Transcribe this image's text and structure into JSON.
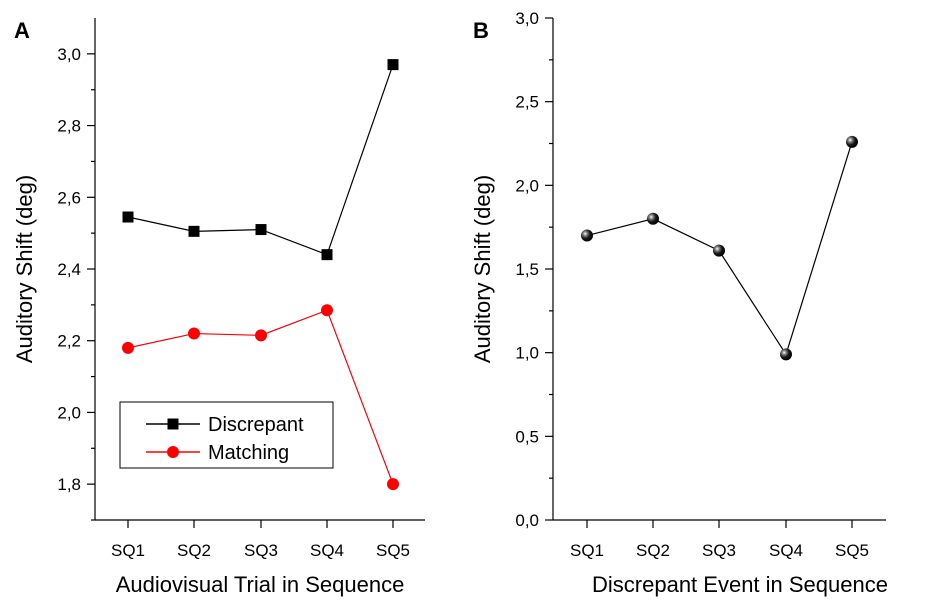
{
  "chart_data": [
    {
      "panel": "A",
      "type": "line",
      "xlabel": "Audiovisual Trial in Sequence",
      "ylabel": "Auditory Shift (deg)",
      "categories": [
        "SQ1",
        "SQ2",
        "SQ3",
        "SQ4",
        "SQ5"
      ],
      "ylim": [
        1.7,
        3.1
      ],
      "yticks": [
        "1,8",
        "2,0",
        "2,2",
        "2,4",
        "2,6",
        "2,8",
        "3,0"
      ],
      "yticks_values": [
        1.8,
        2.0,
        2.2,
        2.4,
        2.6,
        2.8,
        3.0
      ],
      "legend_position": "bottom-left",
      "series": [
        {
          "name": "Discrepant",
          "color": "#000000",
          "marker": "square",
          "values": [
            2.545,
            2.505,
            2.51,
            2.44,
            2.97
          ]
        },
        {
          "name": "Matching",
          "color": "#ff0000",
          "marker": "circle",
          "values": [
            2.18,
            2.22,
            2.215,
            2.285,
            1.8
          ]
        }
      ]
    },
    {
      "panel": "B",
      "type": "line",
      "xlabel": "Discrepant Event in Sequence",
      "ylabel": "Auditory Shift (deg)",
      "categories": [
        "SQ1",
        "SQ2",
        "SQ3",
        "SQ4",
        "SQ5"
      ],
      "ylim": [
        0,
        3.0
      ],
      "yticks": [
        "0,0",
        "0,5",
        "1,0",
        "1,5",
        "2,0",
        "2,5",
        "3,0"
      ],
      "yticks_values": [
        0,
        0.5,
        1.0,
        1.5,
        2.0,
        2.5,
        3.0
      ],
      "series": [
        {
          "color": "#000000",
          "marker": "sphere",
          "values": [
            1.7,
            1.8,
            1.61,
            0.99,
            2.26
          ]
        }
      ]
    }
  ]
}
